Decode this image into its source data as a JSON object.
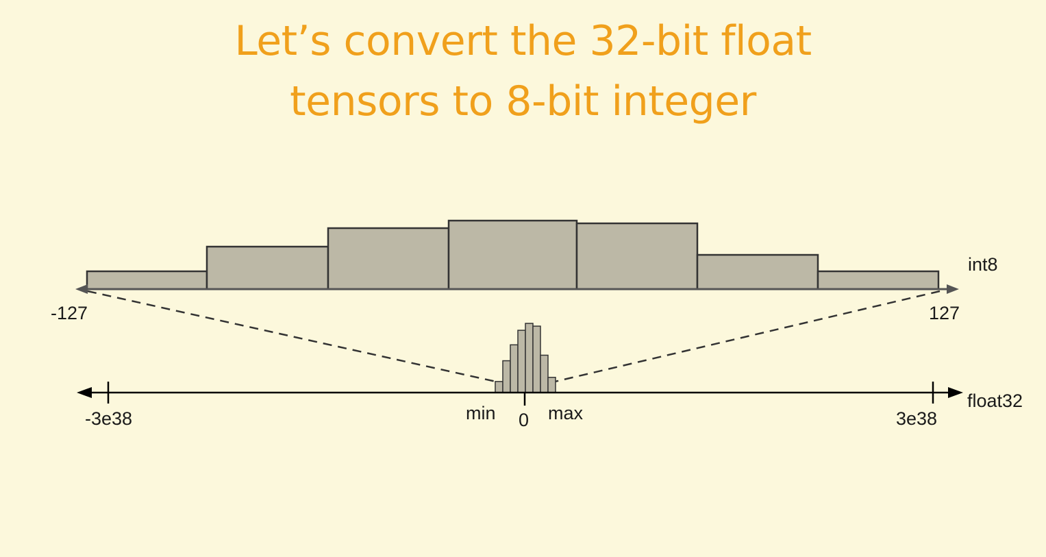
{
  "slide": {
    "title_line1": "Let’s convert the 32-bit float",
    "title_line2": "tensors to 8-bit integer",
    "title_color": "#f0a01c",
    "background_color": "#fcf8dc"
  },
  "int8_axis": {
    "name": "int8",
    "min_label": "-127",
    "max_label": "127",
    "histogram_color": "#bcb8a6",
    "histogram_relative_heights": [
      0.26,
      0.62,
      0.89,
      1.0,
      0.96,
      0.5,
      0.26
    ]
  },
  "float32_axis": {
    "name": "float32",
    "min_label": "-3e38",
    "max_label": "3e38",
    "range_min_label": "min",
    "zero_label": "0",
    "range_max_label": "max",
    "histogram_relative_heights": [
      0.16,
      0.46,
      0.69,
      0.9,
      1.0,
      0.96,
      0.54,
      0.22
    ]
  }
}
